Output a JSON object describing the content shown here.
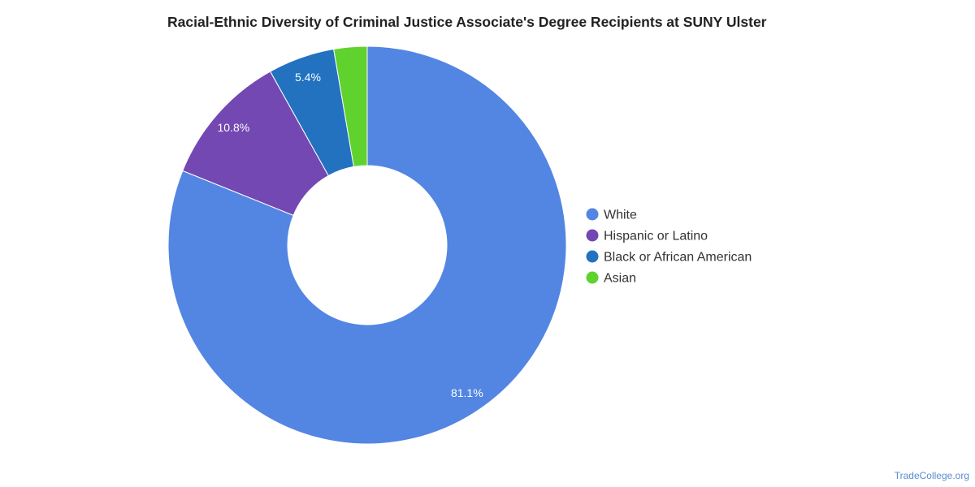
{
  "chart_data": {
    "type": "pie",
    "title": "Racial-Ethnic Diversity of Criminal Justice Associate's Degree Recipients at SUNY Ulster",
    "categories": [
      "White",
      "Hispanic or Latino",
      "Black or African American",
      "Asian"
    ],
    "values": [
      81.1,
      10.8,
      5.4,
      2.7
    ],
    "data_labels": [
      "81.1%",
      "10.8%",
      "5.4%",
      ""
    ],
    "colors": [
      "#5385e3",
      "#7448b2",
      "#2272c0",
      "#5fd22e"
    ],
    "donut": true,
    "legend_position": "right"
  },
  "footer": {
    "watermark": "TradeCollege.org"
  }
}
